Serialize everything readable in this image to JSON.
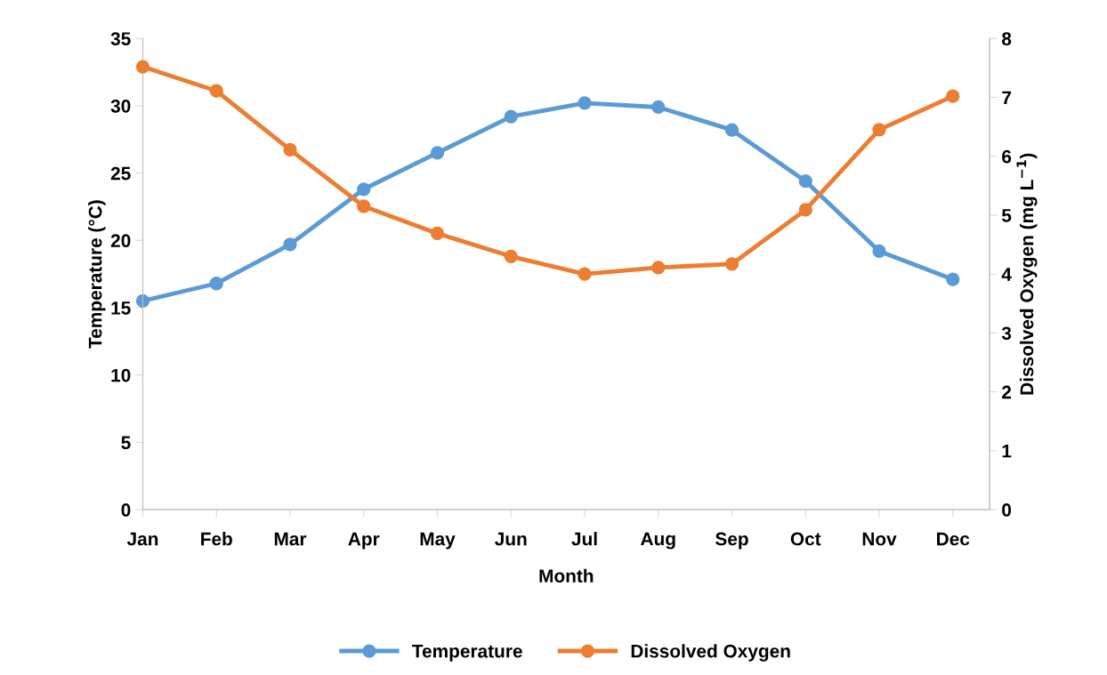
{
  "chart_data": {
    "type": "line",
    "xlabel": "Month",
    "ylabel": "Temperature (°C)",
    "y2label": "Dissolved Oxygen (mg L$^{−1}$)",
    "categories": [
      "Jan",
      "Feb",
      "Mar",
      "Apr",
      "May",
      "Jun",
      "Jul",
      "Aug",
      "Sep",
      "Oct",
      "Nov",
      "Dec"
    ],
    "series": [
      {
        "name": "Temperature",
        "color": "#5b9bd5",
        "values": [
          15.5,
          16.8,
          19.7,
          23.8,
          26.5,
          29.2,
          30.2,
          29.9,
          28.2,
          24.4,
          19.2,
          17.1
        ]
      },
      {
        "name": "Dissolved Oxygen",
        "color": "#ed7d31",
        "axis": "y2",
        "values": [
          7.52,
          7.11,
          6.11,
          5.15,
          4.69,
          4.3,
          4.0,
          4.11,
          4.17,
          5.09,
          6.45,
          7.02
        ]
      }
    ],
    "ylim": [
      0,
      35
    ],
    "yticks": [
      0,
      5,
      10,
      15,
      20,
      25,
      30,
      35
    ],
    "y2lim": [
      0,
      8
    ],
    "y2ticks": [
      0,
      1,
      2,
      3,
      4,
      5,
      6,
      7,
      8
    ],
    "grid": false,
    "legend": "bottom",
    "marker": "circle",
    "line_style": "solid"
  }
}
